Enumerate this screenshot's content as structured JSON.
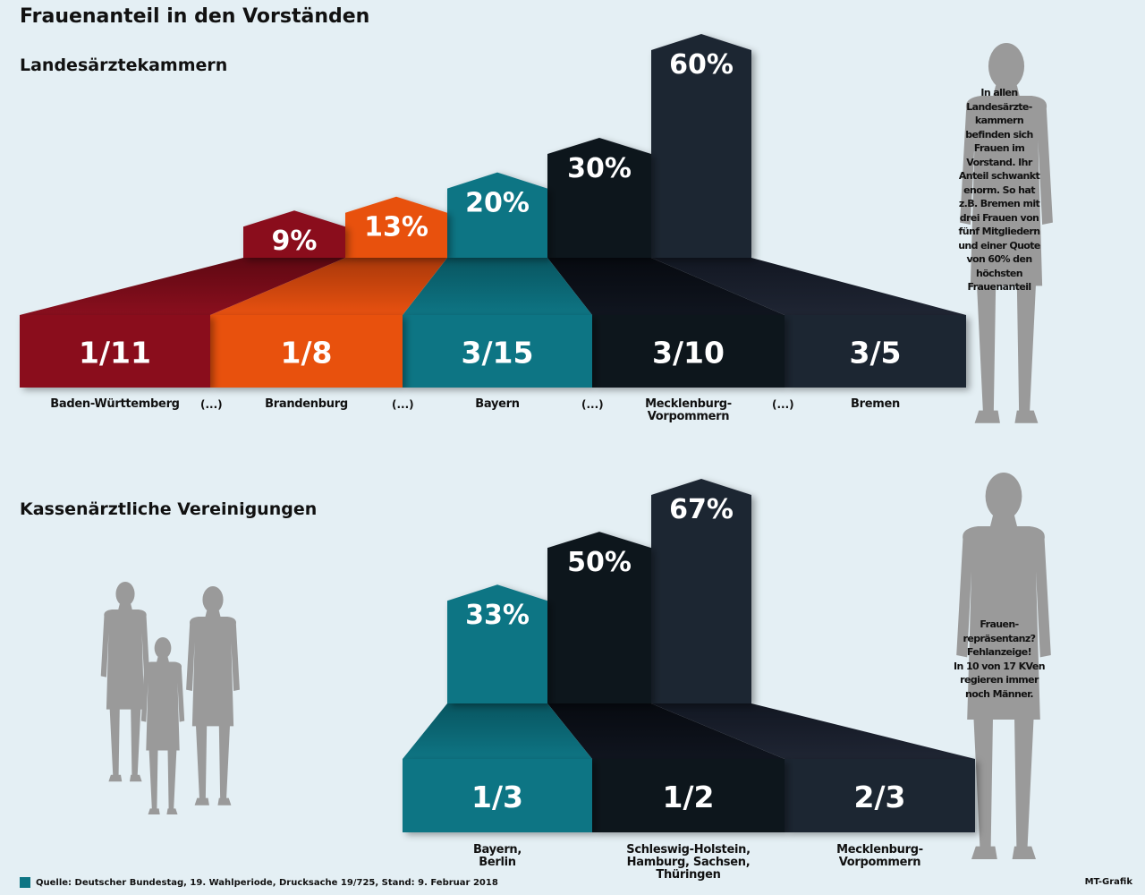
{
  "title": "Frauenanteil in den Vorständen",
  "colors": {
    "background": "#e4eff4",
    "darkred": "#8a0f1e",
    "orange": "#e85110",
    "teal": "#0e7584",
    "black": "#10151f",
    "navy": "#1f2533",
    "silhouette": "#9a9a9a"
  },
  "chart_data": [
    {
      "type": "bar",
      "title": "Landesärztekammern",
      "ylim": [
        0,
        60
      ],
      "categories": [
        "Baden-Württemberg",
        "Brandenburg",
        "Bayern",
        "Mecklenburg-Vorpommern",
        "Bremen"
      ],
      "category_lines": [
        [
          "Baden-Württemberg"
        ],
        [
          "Brandenburg"
        ],
        [
          "Bayern"
        ],
        [
          "Mecklenburg-",
          "Vorpommern"
        ],
        [
          "Bremen"
        ]
      ],
      "gap_labels": [
        "(...)",
        "(...)",
        "(...)",
        "(...)"
      ],
      "values": [
        9,
        13,
        20,
        30,
        60
      ],
      "value_labels": [
        "9%",
        "13%",
        "20%",
        "30%",
        "60%"
      ],
      "fractions": [
        "1/11",
        "1/8",
        "3/15",
        "3/10",
        "3/5"
      ],
      "colors": [
        "darkred",
        "orange",
        "teal",
        "black",
        "navy"
      ],
      "note": [
        "In allen",
        "Landesärzte-",
        "kammern",
        "befinden sich",
        "Frauen im",
        "Vorstand. Ihr",
        "Anteil schwankt",
        "enorm. So hat",
        "z.B. Bremen mit",
        "drei Frauen von",
        "fünf Mitgliedern",
        "und einer Quote",
        "von 60% den",
        "höchsten",
        "Frauenanteil"
      ]
    },
    {
      "type": "bar",
      "title": "Kassenärztliche Vereinigungen",
      "ylim": [
        0,
        67
      ],
      "categories": [
        "Bayern, Berlin",
        "Schleswig-Holstein, Hamburg, Sachsen, Thüringen",
        "Mecklenburg-Vorpommern"
      ],
      "category_lines": [
        [
          "Bayern,",
          "Berlin"
        ],
        [
          "Schleswig-Holstein,",
          "Hamburg, Sachsen,",
          "Thüringen"
        ],
        [
          "Mecklenburg-",
          "Vorpommern"
        ]
      ],
      "values": [
        33,
        50,
        67
      ],
      "value_labels": [
        "33%",
        "50%",
        "67%"
      ],
      "fractions": [
        "1/3",
        "1/2",
        "2/3"
      ],
      "colors": [
        "teal",
        "black",
        "navy"
      ],
      "note": [
        "Frauen-",
        "repräsentanz?",
        "Fehlanzeige!",
        "In 10 von 17 KVen",
        "regieren immer",
        "noch Männer."
      ]
    }
  ],
  "footer": {
    "source": "Quelle: Deutscher Bundestag, 19. Wahlperiode, Drucksache 19/725, Stand: 9. Februar 2018",
    "credit": "MT-Grafik"
  }
}
